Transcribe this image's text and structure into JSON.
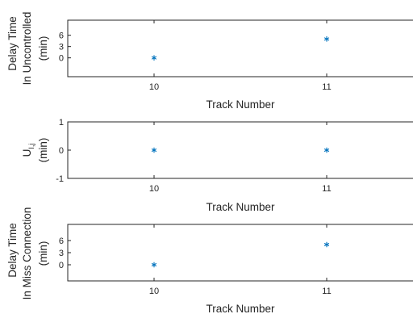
{
  "chart_data": [
    {
      "type": "scatter",
      "marker": "asterisk",
      "color": "#0072BD",
      "x": [
        10,
        11
      ],
      "y": [
        0,
        5
      ],
      "xlim": [
        9.5,
        11.5
      ],
      "ylim": [
        -5,
        10
      ],
      "xticks": [
        "10",
        "11"
      ],
      "yticks": [
        "0",
        "3",
        "6"
      ],
      "xlabel": "Track Number",
      "ylabel_lines": [
        "Delay Time",
        "In Uncontrolled",
        "(min)"
      ],
      "grid": false
    },
    {
      "type": "scatter",
      "marker": "asterisk",
      "color": "#0072BD",
      "x": [
        10,
        11
      ],
      "y": [
        0,
        0
      ],
      "xlim": [
        9.5,
        11.5
      ],
      "ylim": [
        -1,
        1
      ],
      "xticks": [
        "10",
        "11"
      ],
      "yticks": [
        "-1",
        "0",
        "1"
      ],
      "xlabel": "Track Number",
      "ylabel_main": "U",
      "ylabel_sub": "I,j",
      "ylabel_unit": "(min)",
      "grid": false
    },
    {
      "type": "scatter",
      "marker": "asterisk",
      "color": "#0072BD",
      "x": [
        10,
        11
      ],
      "y": [
        0,
        5
      ],
      "xlim": [
        9.5,
        11.5
      ],
      "ylim": [
        -4,
        10
      ],
      "xticks": [
        "10",
        "11"
      ],
      "yticks": [
        "0",
        "3",
        "6"
      ],
      "xlabel": "Track Number",
      "ylabel_lines": [
        "Delay Time",
        "In Miss Connection",
        "(min)"
      ],
      "grid": false
    }
  ]
}
